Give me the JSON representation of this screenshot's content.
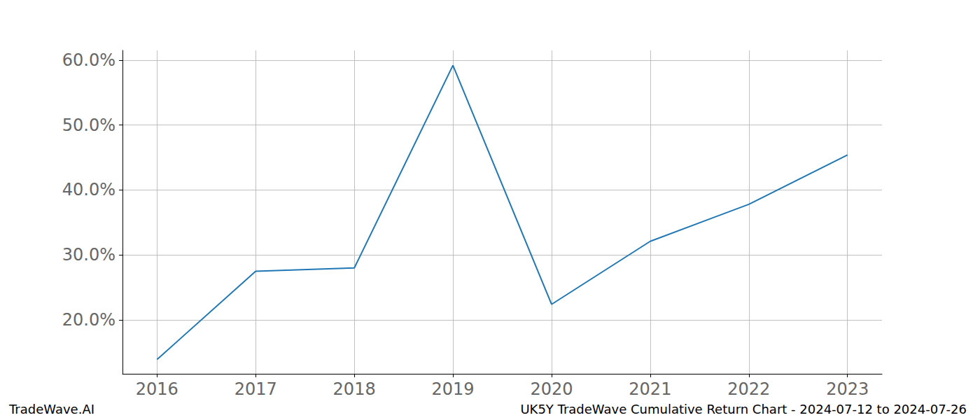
{
  "chart_data": {
    "type": "line",
    "title": "UK5Y TradeWave Cumulative Return Chart - 2024-07-12 to 2024-07-26",
    "annotations": [
      "TradeWave.AI"
    ],
    "x": [
      2016,
      2017,
      2018,
      2019,
      2020,
      2021,
      2022,
      2023
    ],
    "values": [
      13.9,
      27.5,
      28.0,
      59.2,
      22.4,
      32.1,
      37.8,
      45.4
    ],
    "color": "#1f77b4",
    "xlim": [
      2015.65,
      2023.35
    ],
    "xticks": [
      2016,
      2017,
      2018,
      2019,
      2020,
      2021,
      2022,
      2023
    ],
    "ylim": [
      11.7,
      61.5
    ],
    "yticks": [
      {
        "value": 20,
        "label": "20.0%"
      },
      {
        "value": 30,
        "label": "30.0%"
      },
      {
        "value": 40,
        "label": "40.0%"
      },
      {
        "value": 50,
        "label": "50.0%"
      },
      {
        "value": 60,
        "label": "60.0%"
      }
    ],
    "grid": true
  }
}
